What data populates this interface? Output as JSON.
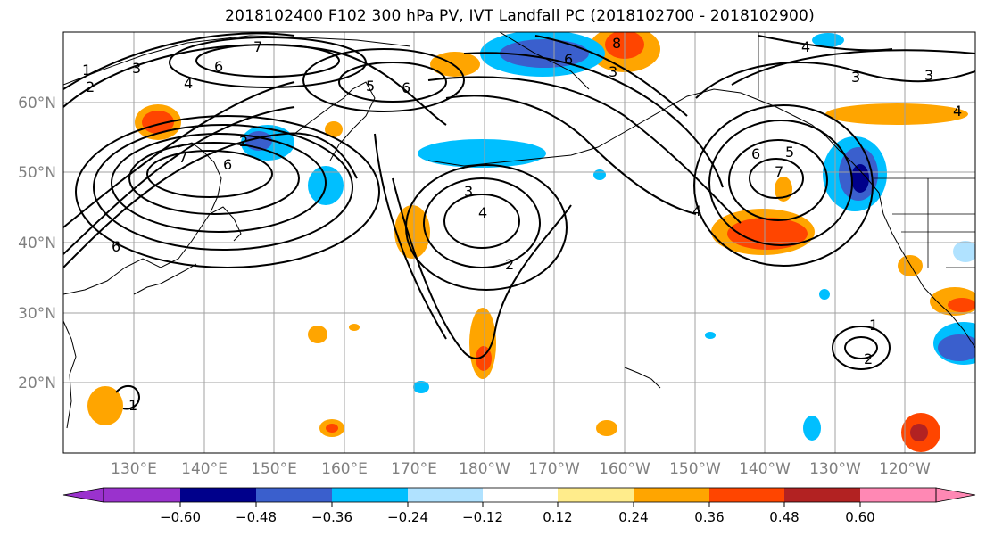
{
  "title": "2018102400 F102 300 hPa PV, IVT Landfall PC (2018102700 - 2018102900)",
  "map": {
    "lon_labels": [
      "130°E",
      "140°E",
      "150°E",
      "160°E",
      "170°E",
      "180°W",
      "170°W",
      "160°W",
      "150°W",
      "140°W",
      "130°W",
      "120°W"
    ],
    "lat_labels": [
      "60°N",
      "50°N",
      "40°N",
      "30°N",
      "20°N"
    ]
  },
  "contour_labels": [
    "1",
    "2",
    "3",
    "4",
    "5",
    "6",
    "7",
    "8"
  ],
  "colorbar": {
    "ticks": [
      "−0.60",
      "−0.48",
      "−0.36",
      "−0.24",
      "−0.12",
      "0.12",
      "0.24",
      "0.36",
      "0.48",
      "0.60"
    ],
    "colors": [
      "#9a32cd",
      "#00008b",
      "#3a5fcd",
      "#00bfff",
      "#b0e2ff",
      "#ffffff",
      "#ffec8b",
      "#ffa500",
      "#ff4500",
      "#b22222",
      "#ff88b4"
    ]
  }
}
